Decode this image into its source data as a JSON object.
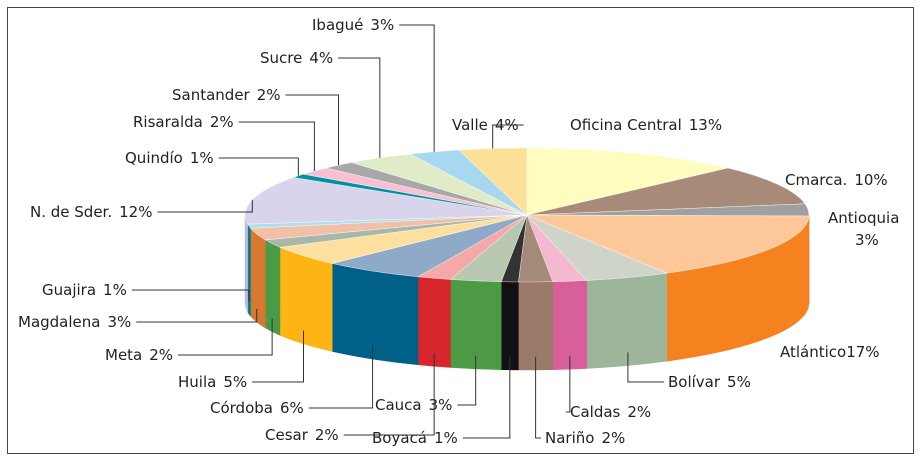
{
  "chart_data": {
    "type": "pie3d",
    "categories": [
      "Oficina Central",
      "Cmarca.",
      "Antioquia",
      "Atlántico",
      "Bolívar",
      "Caldas",
      "Nariño",
      "Boyacá",
      "Cauca",
      "Cesar",
      "Córdoba",
      "Huila",
      "Meta",
      "Magdalena",
      "Guajira",
      "N. de Sder.",
      "Quindío",
      "Risaralda",
      "Santander",
      "Sucre",
      "Ibagué",
      "Valle"
    ],
    "values": [
      13,
      10,
      3,
      17,
      5,
      2,
      2,
      1,
      3,
      2,
      6,
      5,
      2,
      3,
      1,
      12,
      1,
      2,
      2,
      4,
      3,
      4
    ],
    "value_labels": [
      "13%",
      "10%",
      "3%",
      "17%",
      "5%",
      "2%",
      "2%",
      "1%",
      "3%",
      "2%",
      "6%",
      "5%",
      "2%",
      "3%",
      "1%",
      "12%",
      "1%",
      "2%",
      "2%",
      "4%",
      "3%",
      "4%"
    ],
    "colors": [
      "#fffcc0",
      "#a88a78",
      "#a0a0a0",
      "#fcc89a",
      "#ced4c8",
      "#f4b8d0",
      "#a48a78",
      "#333333",
      "#b8c8b0",
      "#f5a8a8",
      "#8eaac8",
      "#fde0a0",
      "#a8b8a8",
      "#f0c0a8",
      "#b0dde8",
      "#d8d4ec",
      "#0090a0",
      "#f8c0d0",
      "#a8a8a8",
      "#e0ecc8",
      "#a8d8f0",
      "#fde098"
    ],
    "side_colors": [
      "#fff7a0",
      "#9a7a68",
      "#8c8c8c",
      "#f5821f",
      "#9db59a",
      "#d8609a",
      "#9a7a68",
      "#111111",
      "#4d9a46",
      "#d7262b",
      "#006088",
      "#fdb515",
      "#4a9a46",
      "#d87830",
      "#00808a",
      "#c0b8e0",
      "#007a88",
      "#e890a8",
      "#8c8c8c",
      "#c8d8a8",
      "#80c0e0",
      "#f8c860"
    ]
  }
}
